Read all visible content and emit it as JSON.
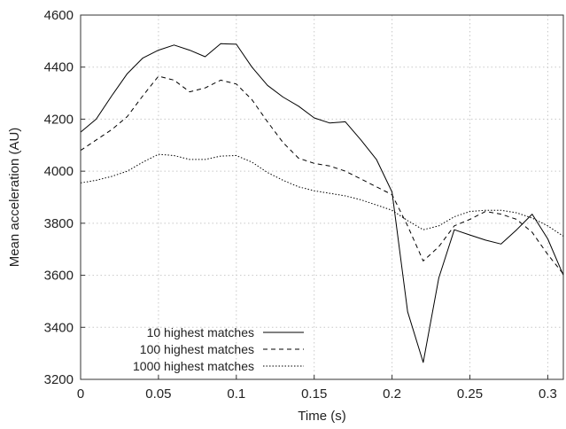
{
  "chart_data": {
    "type": "line",
    "xlabel": "Time (s)",
    "ylabel": "Mean acceleration (AU)",
    "xlim": [
      0,
      0.31
    ],
    "ylim": [
      3200,
      4600
    ],
    "xticks": [
      0,
      0.05,
      0.1,
      0.15,
      0.2,
      0.25,
      0.3
    ],
    "xtick_labels": [
      "0",
      "0.05",
      "0.1",
      "0.15",
      "0.2",
      "0.25",
      "0.3"
    ],
    "yticks": [
      3200,
      3400,
      3600,
      3800,
      4000,
      4200,
      4400,
      4600
    ],
    "ytick_labels": [
      "3200",
      "3400",
      "3600",
      "3800",
      "4000",
      "4200",
      "4400",
      "4600"
    ],
    "grid": true,
    "legend_position": "bottom-left",
    "x": [
      0,
      0.01,
      0.02,
      0.03,
      0.04,
      0.05,
      0.06,
      0.07,
      0.08,
      0.09,
      0.1,
      0.11,
      0.12,
      0.13,
      0.14,
      0.15,
      0.16,
      0.17,
      0.18,
      0.19,
      0.2,
      0.21,
      0.22,
      0.23,
      0.24,
      0.25,
      0.26,
      0.27,
      0.28,
      0.29,
      0.3,
      0.31
    ],
    "series": [
      {
        "name": "10 highest matches",
        "style": "solid",
        "values": [
          4150,
          4200,
          4290,
          4375,
          4435,
          4465,
          4485,
          4465,
          4440,
          4490,
          4488,
          4400,
          4330,
          4285,
          4250,
          4205,
          4185,
          4190,
          4120,
          4045,
          3920,
          3460,
          3265,
          3590,
          3775,
          3755,
          3735,
          3720,
          3775,
          3835,
          3740,
          3600
        ]
      },
      {
        "name": "100 highest matches",
        "style": "dashed",
        "values": [
          4080,
          4120,
          4160,
          4210,
          4290,
          4365,
          4350,
          4305,
          4320,
          4350,
          4335,
          4275,
          4190,
          4110,
          4050,
          4030,
          4020,
          4000,
          3970,
          3940,
          3910,
          3790,
          3655,
          3710,
          3790,
          3815,
          3845,
          3835,
          3815,
          3765,
          3680,
          3605
        ]
      },
      {
        "name": "1000 highest matches",
        "style": "dotted",
        "values": [
          3955,
          3965,
          3980,
          4000,
          4035,
          4065,
          4060,
          4045,
          4045,
          4058,
          4060,
          4035,
          3995,
          3965,
          3940,
          3925,
          3915,
          3905,
          3890,
          3870,
          3850,
          3810,
          3775,
          3790,
          3825,
          3845,
          3850,
          3850,
          3840,
          3820,
          3790,
          3750
        ]
      }
    ]
  }
}
